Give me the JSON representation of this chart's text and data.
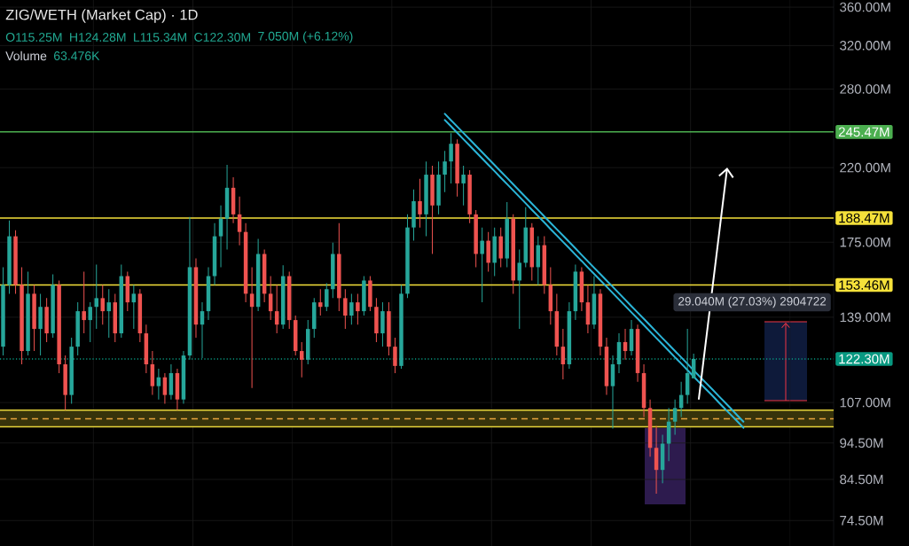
{
  "chart_data": {
    "type": "candlestick",
    "title": "ZIG/WETH (Market Cap) · 1D",
    "categories": [
      null,
      null,
      null,
      null,
      null,
      null,
      null,
      null,
      null,
      null,
      null,
      null,
      null,
      null,
      null,
      null,
      null,
      null,
      null,
      null,
      null,
      null,
      null,
      null,
      null,
      null,
      null,
      null,
      null,
      null,
      null,
      null,
      null,
      null,
      null,
      null,
      null,
      null,
      null,
      null,
      null,
      null,
      null,
      null,
      null,
      null,
      null,
      null,
      null,
      null,
      null,
      null,
      null,
      null,
      null,
      null,
      null,
      null,
      null,
      null,
      null,
      null,
      null,
      null,
      null,
      null,
      null,
      null,
      null,
      null,
      null,
      null,
      null,
      null,
      null,
      null,
      null,
      null,
      null,
      null,
      null,
      null,
      null,
      null,
      null,
      null,
      null,
      null,
      null,
      null,
      null,
      null,
      null,
      null,
      null,
      null,
      null,
      null,
      null,
      null,
      null,
      null,
      null,
      null,
      null,
      null,
      null,
      null,
      null,
      null,
      null,
      null,
      null,
      null,
      null,
      null,
      null,
      null,
      null,
      null,
      null,
      null,
      null,
      null,
      null,
      null,
      null,
      null,
      null,
      null,
      null,
      null,
      null,
      null
    ],
    "ohlc": [
      [
        127.0,
        162.1,
        123.6,
        153.5
      ],
      [
        153.5,
        187.1,
        149.4,
        178.2
      ],
      [
        178.2,
        181.6,
        149.4,
        153.5
      ],
      [
        153.5,
        162.1,
        120.3,
        125.3
      ],
      [
        125.3,
        159.9,
        123.6,
        149.4
      ],
      [
        149.4,
        153.5,
        125.3,
        134.1
      ],
      [
        134.1,
        149.4,
        123.6,
        143.5
      ],
      [
        143.5,
        147.4,
        128.8,
        132.3
      ],
      [
        132.3,
        158.6,
        130.5,
        153.5
      ],
      [
        153.5,
        155.6,
        117.1,
        120.3
      ],
      [
        120.3,
        123.6,
        104.6,
        109.5
      ],
      [
        109.5,
        130.5,
        106.6,
        127.0
      ],
      [
        127.0,
        145.5,
        123.6,
        141.6
      ],
      [
        141.6,
        159.9,
        132.3,
        137.8
      ],
      [
        137.8,
        145.5,
        128.8,
        143.5
      ],
      [
        143.5,
        163.4,
        134.1,
        147.4
      ],
      [
        147.4,
        153.5,
        135.9,
        141.6
      ],
      [
        141.6,
        151.5,
        130.5,
        145.5
      ],
      [
        145.5,
        149.4,
        128.8,
        132.3
      ],
      [
        132.3,
        163.4,
        130.5,
        157.7
      ],
      [
        157.7,
        159.9,
        141.6,
        145.5
      ],
      [
        145.5,
        153.5,
        134.1,
        149.4
      ],
      [
        149.4,
        151.5,
        128.8,
        132.3
      ],
      [
        132.3,
        135.9,
        117.1,
        120.3
      ],
      [
        120.3,
        125.3,
        109.5,
        112.5
      ],
      [
        112.5,
        118.7,
        108.0,
        115.6
      ],
      [
        115.6,
        117.1,
        106.6,
        109.5
      ],
      [
        109.5,
        120.3,
        108.0,
        117.1
      ],
      [
        117.1,
        118.7,
        104.6,
        108.0
      ],
      [
        108.0,
        125.3,
        106.6,
        123.6
      ],
      [
        123.6,
        189.1,
        122.0,
        162.1
      ],
      [
        162.1,
        166.5,
        130.5,
        135.9
      ],
      [
        135.9,
        145.5,
        122.6,
        141.6
      ],
      [
        141.6,
        162.1,
        137.8,
        157.7
      ],
      [
        157.7,
        185.5,
        153.5,
        178.2
      ],
      [
        178.2,
        195.9,
        162.1,
        188.1
      ],
      [
        188.1,
        221.8,
        171.1,
        206.8
      ],
      [
        206.8,
        213.6,
        185.5,
        190.6
      ],
      [
        190.6,
        201.3,
        173.4,
        180.6
      ],
      [
        180.6,
        185.5,
        145.5,
        149.4
      ],
      [
        149.4,
        162.1,
        111.9,
        143.5
      ],
      [
        143.5,
        176.8,
        141.6,
        168.8
      ],
      [
        168.8,
        171.1,
        145.5,
        149.4
      ],
      [
        149.4,
        157.7,
        137.8,
        141.6
      ],
      [
        141.6,
        153.5,
        132.3,
        135.9
      ],
      [
        135.9,
        163.0,
        134.1,
        157.7
      ],
      [
        157.7,
        159.9,
        134.1,
        137.8
      ],
      [
        137.8,
        139.7,
        123.6,
        125.3
      ],
      [
        125.3,
        128.8,
        115.6,
        122.0
      ],
      [
        122.0,
        137.8,
        120.3,
        134.1
      ],
      [
        134.1,
        147.4,
        130.5,
        145.5
      ],
      [
        145.5,
        151.5,
        139.7,
        143.5
      ],
      [
        143.5,
        154.3,
        141.6,
        151.5
      ],
      [
        151.5,
        174.8,
        147.4,
        168.8
      ],
      [
        168.8,
        185.5,
        141.6,
        147.4
      ],
      [
        147.4,
        151.5,
        134.1,
        139.7
      ],
      [
        139.7,
        149.4,
        135.9,
        145.5
      ],
      [
        145.5,
        149.4,
        135.9,
        141.6
      ],
      [
        141.6,
        157.7,
        139.7,
        155.6
      ],
      [
        155.6,
        157.7,
        141.6,
        143.5
      ],
      [
        143.5,
        147.4,
        128.8,
        132.3
      ],
      [
        132.3,
        145.5,
        127.0,
        141.6
      ],
      [
        141.6,
        145.5,
        123.6,
        127.0
      ],
      [
        127.0,
        130.5,
        117.1,
        119.7
      ],
      [
        119.7,
        153.5,
        118.7,
        149.4
      ],
      [
        149.4,
        190.6,
        147.4,
        183.1
      ],
      [
        183.1,
        205.7,
        175.8,
        198.5
      ],
      [
        198.5,
        212.5,
        183.1,
        190.6
      ],
      [
        190.6,
        224.2,
        178.2,
        215.3
      ],
      [
        215.3,
        221.2,
        168.8,
        195.9
      ],
      [
        195.9,
        224.2,
        190.6,
        215.3
      ],
      [
        215.3,
        231.6,
        204.0,
        224.2
      ],
      [
        224.2,
        244.5,
        209.6,
        236.7
      ],
      [
        236.7,
        239.9,
        201.3,
        209.6
      ],
      [
        209.6,
        221.2,
        195.9,
        215.3
      ],
      [
        215.3,
        218.3,
        185.5,
        190.6
      ],
      [
        190.6,
        193.2,
        162.1,
        168.8
      ],
      [
        168.8,
        183.1,
        145.5,
        175.8
      ],
      [
        175.8,
        180.6,
        159.9,
        164.3
      ],
      [
        164.3,
        183.1,
        157.7,
        178.2
      ],
      [
        178.2,
        183.1,
        162.1,
        166.5
      ],
      [
        166.5,
        198.0,
        162.1,
        188.1
      ],
      [
        188.1,
        190.6,
        149.4,
        155.6
      ],
      [
        155.6,
        171.1,
        134.1,
        164.3
      ],
      [
        164.3,
        194.8,
        162.1,
        183.1
      ],
      [
        183.1,
        185.5,
        155.6,
        162.1
      ],
      [
        162.1,
        178.2,
        153.5,
        173.4
      ],
      [
        173.4,
        178.2,
        149.4,
        153.5
      ],
      [
        153.5,
        162.1,
        135.9,
        141.6
      ],
      [
        141.6,
        149.4,
        123.6,
        127.0
      ],
      [
        127.0,
        134.1,
        114.9,
        120.3
      ],
      [
        120.3,
        145.5,
        118.7,
        141.6
      ],
      [
        141.6,
        163.4,
        137.8,
        159.9
      ],
      [
        159.9,
        162.1,
        141.6,
        145.5
      ],
      [
        145.5,
        153.5,
        132.3,
        135.9
      ],
      [
        135.9,
        157.7,
        134.1,
        149.4
      ],
      [
        149.4,
        151.5,
        123.6,
        127.0
      ],
      [
        127.0,
        130.5,
        109.5,
        112.5
      ],
      [
        112.5,
        123.6,
        98.8,
        120.3
      ],
      [
        120.3,
        132.3,
        117.1,
        128.8
      ],
      [
        128.8,
        134.1,
        122.0,
        125.3
      ],
      [
        125.3,
        137.8,
        123.6,
        134.1
      ],
      [
        134.1,
        135.9,
        114.0,
        117.1
      ],
      [
        117.1,
        120.3,
        102.3,
        105.2
      ],
      [
        105.2,
        108.0,
        90.6,
        93.1
      ],
      [
        93.1,
        99.6,
        80.9,
        87.0
      ],
      [
        87.0,
        96.9,
        83.5,
        94.3
      ],
      [
        94.3,
        105.2,
        89.4,
        100.9
      ],
      [
        100.9,
        108.0,
        96.9,
        105.2
      ],
      [
        105.2,
        114.0,
        102.3,
        109.5
      ],
      [
        109.5,
        134.1,
        106.6,
        117.1
      ],
      [
        115.25,
        124.28,
        115.25,
        122.3
      ],
      null,
      null,
      null,
      null,
      null,
      null,
      null,
      null,
      null,
      null,
      null,
      null,
      null,
      null,
      null,
      null,
      null,
      null,
      null,
      null,
      null,
      null
    ],
    "colors": [
      "#26a69a",
      "#26a69a",
      "#ef5350",
      "#ef5350",
      "#26a69a",
      "#ef5350",
      "#26a69a",
      "#ef5350",
      "#26a69a",
      "#ef5350",
      "#ef5350",
      "#26a69a",
      "#26a69a",
      "#ef5350",
      "#26a69a",
      "#26a69a",
      "#ef5350",
      "#26a69a",
      "#ef5350",
      "#26a69a",
      "#ef5350",
      "#26a69a",
      "#ef5350",
      "#ef5350",
      "#ef5350",
      "#26a69a",
      "#ef5350",
      "#26a69a",
      "#ef5350",
      "#26a69a",
      "#26a69a",
      "#ef5350",
      "#26a69a",
      "#26a69a",
      "#26a69a",
      "#26a69a",
      "#26a69a",
      "#ef5350",
      "#ef5350",
      "#ef5350",
      "#ef5350",
      "#26a69a",
      "#ef5350",
      "#ef5350",
      "#ef5350",
      "#26a69a",
      "#ef5350",
      "#ef5350",
      "#ef5350",
      "#26a69a",
      "#26a69a",
      "#ef5350",
      "#26a69a",
      "#26a69a",
      "#ef5350",
      "#ef5350",
      "#26a69a",
      "#ef5350",
      "#26a69a",
      "#ef5350",
      "#ef5350",
      "#26a69a",
      "#ef5350",
      "#ef5350",
      "#26a69a",
      "#26a69a",
      "#26a69a",
      "#ef5350",
      "#26a69a",
      "#ef5350",
      "#26a69a",
      "#26a69a",
      "#26a69a",
      "#ef5350",
      "#26a69a",
      "#ef5350",
      "#ef5350",
      "#26a69a",
      "#ef5350",
      "#26a69a",
      "#ef5350",
      "#26a69a",
      "#ef5350",
      "#26a69a",
      "#26a69a",
      "#ef5350",
      "#26a69a",
      "#ef5350",
      "#ef5350",
      "#ef5350",
      "#ef5350",
      "#26a69a",
      "#26a69a",
      "#ef5350",
      "#ef5350",
      "#26a69a",
      "#ef5350",
      "#ef5350",
      "#26a69a",
      "#26a69a",
      "#ef5350",
      "#26a69a",
      "#ef5350",
      "#ef5350",
      "#ef5350",
      "#ef5350",
      "#26a69a",
      "#26a69a",
      "#26a69a",
      "#26a69a",
      "#26a69a",
      "#26a69a",
      null,
      null,
      null,
      null,
      null,
      null,
      null,
      null,
      null,
      null,
      null,
      null,
      null,
      null,
      null,
      null,
      null,
      null,
      null,
      null,
      null,
      null
    ],
    "series": [
      {
        "type": "line",
        "color": "#2bb5d8",
        "values": [
          null,
          null,
          null,
          null,
          null,
          null,
          null,
          null,
          null,
          null,
          null,
          null,
          null,
          null,
          null,
          null,
          null,
          null,
          null,
          null,
          null,
          null,
          null,
          null,
          null,
          null,
          null,
          null,
          null,
          null,
          null,
          null,
          null,
          null,
          null,
          null,
          null,
          null,
          null,
          null,
          null,
          null,
          null,
          null,
          null,
          null,
          null,
          null,
          null,
          null,
          null,
          null,
          null,
          null,
          null,
          null,
          null,
          null,
          null,
          null,
          null,
          null,
          null,
          null,
          null,
          null,
          null,
          null,
          null,
          null,
          null,
          259.5,
          254.4,
          249.5,
          244.6,
          239.9,
          235.2,
          230.6,
          226.1,
          221.7,
          217.4,
          213.2,
          209.0,
          204.9,
          200.9,
          197.0,
          193.2,
          189.4,
          185.7,
          182.1,
          178.6,
          175.1,
          171.7,
          168.3,
          165.0,
          161.8,
          158.7,
          155.6,
          152.6,
          149.6,
          146.7,
          143.8,
          141.0,
          138.3,
          135.6,
          132.9,
          130.3,
          127.8,
          125.3,
          122.9,
          120.5,
          118.1,
          115.8,
          113.6,
          111.4,
          109.2,
          107.1,
          105.0,
          102.9,
          100.9,
          null,
          null,
          null,
          null,
          null,
          null,
          null,
          null,
          null,
          null,
          null,
          null,
          null,
          null
        ]
      },
      {
        "type": "line",
        "color": "#2bb5d8",
        "values": [
          null,
          null,
          null,
          null,
          null,
          null,
          null,
          null,
          null,
          null,
          null,
          null,
          null,
          null,
          null,
          null,
          null,
          null,
          null,
          null,
          null,
          null,
          null,
          null,
          null,
          null,
          null,
          null,
          null,
          null,
          null,
          null,
          null,
          null,
          null,
          null,
          null,
          null,
          null,
          null,
          null,
          null,
          null,
          null,
          null,
          null,
          null,
          null,
          null,
          null,
          null,
          null,
          null,
          null,
          null,
          null,
          null,
          null,
          null,
          null,
          null,
          null,
          null,
          null,
          null,
          null,
          null,
          null,
          null,
          null,
          null,
          254.6,
          249.7,
          244.8,
          240.0,
          235.4,
          230.8,
          226.3,
          221.9,
          217.6,
          213.3,
          209.2,
          205.1,
          201.1,
          197.2,
          193.3,
          189.6,
          185.9,
          182.2,
          178.7,
          175.2,
          171.8,
          168.4,
          165.2,
          161.9,
          158.8,
          155.7,
          152.7,
          149.7,
          146.8,
          143.9,
          141.1,
          138.4,
          135.7,
          133.0,
          130.4,
          127.9,
          125.4,
          122.9,
          120.6,
          118.2,
          115.9,
          113.6,
          111.4,
          109.3,
          107.1,
          105.0,
          103.0,
          101.0,
          99.0,
          null,
          null,
          null,
          null,
          null,
          null,
          null,
          null,
          null,
          null,
          null,
          null,
          null,
          null
        ]
      }
    ],
    "ylim": [
      68.9,
      368
    ],
    "yticks": [
      {
        "value": 74.5,
        "label": "74.50M"
      },
      {
        "value": 84.5,
        "label": "84.50M"
      },
      {
        "value": 94.5,
        "label": "94.50M"
      },
      {
        "value": 107,
        "label": "107.00M"
      },
      {
        "value": 139,
        "label": "139.00M"
      },
      {
        "value": 175,
        "label": "175.00M"
      },
      {
        "value": 220,
        "label": "220.00M"
      },
      {
        "value": 280,
        "label": "280.00M"
      },
      {
        "value": 320,
        "label": "320.00M"
      },
      {
        "value": 360,
        "label": "360.00M"
      }
    ],
    "log": "y",
    "grid": true,
    "tick_labels": "y",
    "ref_lines": [
      {
        "axis": "y",
        "value": 245.47,
        "label": "245.47M",
        "color": "#4caf50"
      },
      {
        "axis": "y",
        "value": 188.47,
        "label": "188.47M",
        "color": "#f5e13a"
      },
      {
        "axis": "y",
        "value": 153.46,
        "label": "153.46M",
        "color": "#f5e13a"
      },
      {
        "axis": "y",
        "value": 122.3,
        "label": "122.30M",
        "color": "#089981",
        "line_style": "dotted"
      },
      {
        "axis": "y",
        "value": 104.5,
        "color": "#e6d43a"
      },
      {
        "axis": "y",
        "value": 99.3,
        "color": "#e6d43a"
      },
      {
        "axis": "y",
        "value": 101.8,
        "color": "#e8a33d",
        "line_style": "dashed"
      }
    ],
    "bands": [
      {
        "axis": "y",
        "from": 99.3,
        "to": 104.5,
        "color": "#37330b"
      }
    ],
    "annotations": [
      "O115.25M",
      "H124.28M",
      "L115.34M",
      "C122.30M",
      "7.050M (+6.12%)",
      "Volume",
      "63.476K",
      "29.040M (27.03%) 2904722"
    ]
  }
}
